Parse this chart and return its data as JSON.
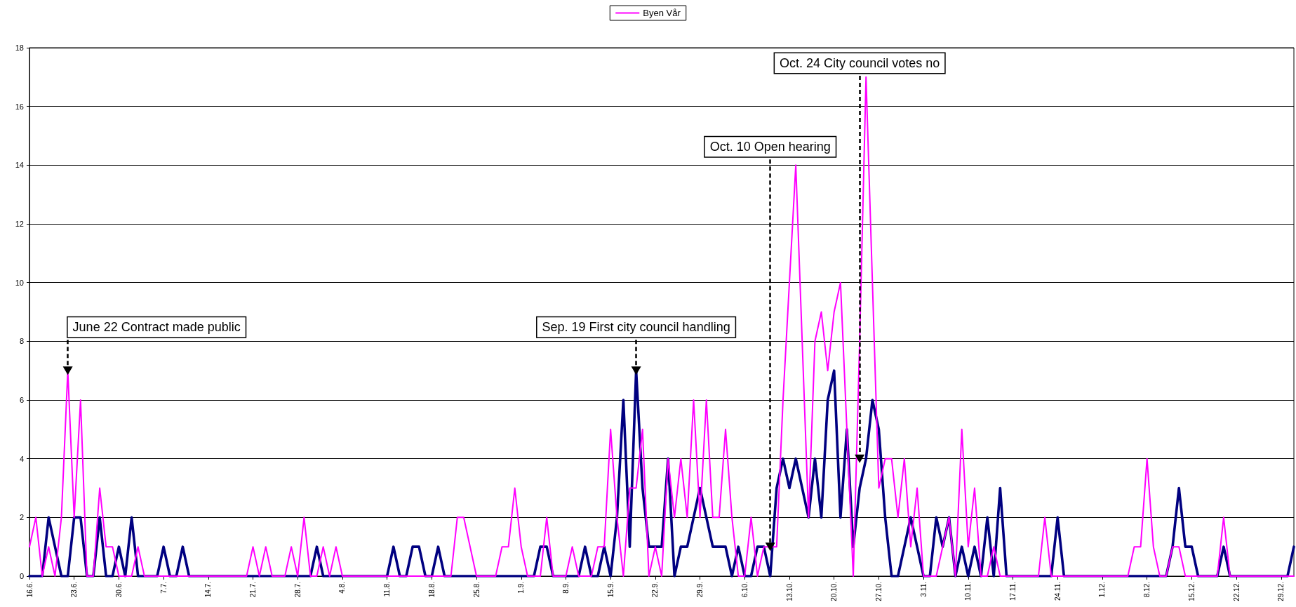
{
  "chart_data": {
    "type": "line",
    "x": [
      "--06-16",
      "--06-17",
      "--06-18",
      "--06-19",
      "--06-20",
      "--06-21",
      "--06-22",
      "--06-23",
      "--06-24",
      "--06-25",
      "--06-26",
      "--06-27",
      "--06-28",
      "--06-29",
      "--06-30",
      "--07-01",
      "--07-02",
      "--07-03",
      "--07-04",
      "--07-05",
      "--07-06",
      "--07-07",
      "--07-08",
      "--07-09",
      "--07-10",
      "--07-11",
      "--07-12",
      "--07-13",
      "--07-14",
      "--07-15",
      "--07-16",
      "--07-17",
      "--07-18",
      "--07-19",
      "--07-20",
      "--07-21",
      "--07-22",
      "--07-23",
      "--07-24",
      "--07-25",
      "--07-26",
      "--07-27",
      "--07-28",
      "--07-29",
      "--07-30",
      "--07-31",
      "--08-01",
      "--08-02",
      "--08-03",
      "--08-04",
      "--08-05",
      "--08-06",
      "--08-07",
      "--08-08",
      "--08-09",
      "--08-10",
      "--08-11",
      "--08-12",
      "--08-13",
      "--08-14",
      "--08-15",
      "--08-16",
      "--08-17",
      "--08-18",
      "--08-19",
      "--08-20",
      "--08-21",
      "--08-22",
      "--08-23",
      "--08-24",
      "--08-25",
      "--08-26",
      "--08-27",
      "--08-28",
      "--08-29",
      "--08-30",
      "--08-31",
      "--09-01",
      "--09-02",
      "--09-03",
      "--09-04",
      "--09-05",
      "--09-06",
      "--09-07",
      "--09-08",
      "--09-09",
      "--09-10",
      "--09-11",
      "--09-12",
      "--09-13",
      "--09-14",
      "--09-15",
      "--09-16",
      "--09-17",
      "--09-18",
      "--09-19",
      "--09-20",
      "--09-21",
      "--09-22",
      "--09-23",
      "--09-24",
      "--09-25",
      "--09-26",
      "--09-27",
      "--09-28",
      "--09-29",
      "--09-30",
      "--10-01",
      "--10-02",
      "--10-03",
      "--10-04",
      "--10-05",
      "--10-06",
      "--10-07",
      "--10-08",
      "--10-09",
      "--10-10",
      "--10-11",
      "--10-12",
      "--10-13",
      "--10-14",
      "--10-15",
      "--10-16",
      "--10-17",
      "--10-18",
      "--10-19",
      "--10-20",
      "--10-21",
      "--10-22",
      "--10-23",
      "--10-24",
      "--10-25",
      "--10-26",
      "--10-27",
      "--10-28",
      "--10-29",
      "--10-30",
      "--10-31",
      "--11-01",
      "--11-02",
      "--11-03",
      "--11-04",
      "--11-05",
      "--11-06",
      "--11-07",
      "--11-08",
      "--11-09",
      "--11-10",
      "--11-11",
      "--11-12",
      "--11-13",
      "--11-14",
      "--11-15",
      "--11-16",
      "--11-17",
      "--11-18",
      "--11-19",
      "--11-20",
      "--11-21",
      "--11-22",
      "--11-23",
      "--11-24",
      "--11-25",
      "--11-26",
      "--11-27",
      "--11-28",
      "--11-29",
      "--11-30",
      "--12-01",
      "--12-02",
      "--12-03",
      "--12-04",
      "--12-05",
      "--12-06",
      "--12-07",
      "--12-08",
      "--12-09",
      "--12-10",
      "--12-11",
      "--12-12",
      "--12-13",
      "--12-14",
      "--12-15",
      "--12-16",
      "--12-17",
      "--12-18",
      "--12-19",
      "--12-20",
      "--12-21",
      "--12-22",
      "--12-23",
      "--12-24",
      "--12-25",
      "--12-26",
      "--12-27",
      "--12-28",
      "--12-29",
      "--12-30",
      "--12-31"
    ],
    "series": [
      {
        "color": "#000080",
        "values": [
          0,
          0,
          0,
          2,
          1,
          0,
          0,
          2,
          2,
          0,
          0,
          2,
          0,
          0,
          1,
          0,
          2,
          0,
          0,
          0,
          0,
          1,
          0,
          0,
          1,
          0,
          0,
          0,
          0,
          0,
          0,
          0,
          0,
          0,
          0,
          0,
          0,
          0,
          0,
          0,
          0,
          0,
          0,
          0,
          0,
          1,
          0,
          0,
          0,
          0,
          0,
          0,
          0,
          0,
          0,
          0,
          0,
          1,
          0,
          0,
          1,
          1,
          0,
          0,
          1,
          0,
          0,
          0,
          0,
          0,
          0,
          0,
          0,
          0,
          0,
          0,
          0,
          0,
          0,
          0,
          1,
          1,
          0,
          0,
          0,
          0,
          0,
          1,
          0,
          0,
          1,
          0,
          2,
          6,
          1,
          7,
          3,
          1,
          1,
          1,
          4,
          0,
          1,
          1,
          2,
          3,
          2,
          1,
          1,
          1,
          0,
          1,
          0,
          0,
          1,
          1,
          0,
          3,
          4,
          3,
          4,
          3,
          2,
          4,
          2,
          6,
          7,
          2,
          5,
          1,
          3,
          4,
          6,
          5,
          2,
          0,
          0,
          1,
          2,
          1,
          0,
          0,
          2,
          1,
          2,
          0,
          1,
          0,
          1,
          0,
          2,
          0,
          3,
          0,
          0,
          0,
          0,
          0,
          0,
          0,
          0,
          2,
          0,
          0,
          0,
          0,
          0,
          0,
          0,
          0,
          0,
          0,
          0,
          0,
          0,
          0,
          0,
          0,
          0,
          1,
          3,
          1,
          1,
          0,
          0,
          0,
          0,
          1,
          0,
          0,
          0,
          0,
          0,
          0,
          0,
          0,
          0,
          0,
          1
        ]
      },
      {
        "name": "Byen Vår",
        "color": "#ff00ff",
        "values": [
          1,
          2,
          0,
          1,
          0,
          2,
          7,
          2,
          6,
          0,
          0,
          3,
          1,
          1,
          0,
          0,
          0,
          1,
          0,
          0,
          0,
          0,
          0,
          0,
          0,
          0,
          0,
          0,
          0,
          0,
          0,
          0,
          0,
          0,
          0,
          1,
          0,
          1,
          0,
          0,
          0,
          1,
          0,
          2,
          0,
          0,
          1,
          0,
          1,
          0,
          0,
          0,
          0,
          0,
          0,
          0,
          0,
          0,
          0,
          0,
          0,
          0,
          0,
          0,
          0,
          0,
          0,
          2,
          2,
          1,
          0,
          0,
          0,
          0,
          1,
          1,
          3,
          1,
          0,
          0,
          0,
          2,
          0,
          0,
          0,
          1,
          0,
          0,
          0,
          1,
          1,
          5,
          2,
          0,
          3,
          3,
          5,
          0,
          1,
          0,
          4,
          2,
          4,
          2,
          6,
          2,
          6,
          2,
          2,
          5,
          2,
          0,
          0,
          2,
          0,
          1,
          1,
          1,
          6,
          10,
          14,
          8,
          2,
          8,
          9,
          7,
          9,
          10,
          5,
          0,
          8,
          17,
          10,
          3,
          4,
          4,
          2,
          4,
          1,
          3,
          0,
          0,
          0,
          1,
          2,
          0,
          5,
          1,
          3,
          0,
          0,
          1,
          0,
          0,
          0,
          0,
          0,
          0,
          0,
          2,
          0,
          0,
          0,
          0,
          0,
          0,
          0,
          0,
          0,
          0,
          0,
          0,
          0,
          1,
          1,
          4,
          1,
          0,
          0,
          1,
          1,
          0,
          0,
          0,
          0,
          0,
          0,
          2,
          0,
          0,
          0,
          0,
          0,
          0,
          0,
          0,
          0,
          0,
          0
        ]
      }
    ],
    "xlim": [
      "--06-16",
      "--12-31"
    ],
    "xticks": [
      {
        "value": "--06-16",
        "label": "16.6."
      },
      {
        "value": "--06-23",
        "label": "23.6."
      },
      {
        "value": "--06-30",
        "label": "30.6."
      },
      {
        "value": "--07-07",
        "label": "7.7."
      },
      {
        "value": "--07-14",
        "label": "14.7."
      },
      {
        "value": "--07-21",
        "label": "21.7."
      },
      {
        "value": "--07-28",
        "label": "28.7."
      },
      {
        "value": "--08-04",
        "label": "4.8."
      },
      {
        "value": "--08-11",
        "label": "11.8."
      },
      {
        "value": "--08-18",
        "label": "18.8."
      },
      {
        "value": "--08-25",
        "label": "25.8."
      },
      {
        "value": "--09-01",
        "label": "1.9."
      },
      {
        "value": "--09-08",
        "label": "8.9."
      },
      {
        "value": "--09-15",
        "label": "15.9."
      },
      {
        "value": "--09-22",
        "label": "22.9."
      },
      {
        "value": "--09-29",
        "label": "29.9."
      },
      {
        "value": "--10-06",
        "label": "6.10."
      },
      {
        "value": "--10-13",
        "label": "13.10."
      },
      {
        "value": "--10-20",
        "label": "20.10."
      },
      {
        "value": "--10-27",
        "label": "27.10."
      },
      {
        "value": "--11-03",
        "label": "3.11."
      },
      {
        "value": "--11-10",
        "label": "10.11."
      },
      {
        "value": "--11-17",
        "label": "17.11."
      },
      {
        "value": "--11-24",
        "label": "24.11."
      },
      {
        "value": "--12-01",
        "label": "1.12."
      },
      {
        "value": "--12-08",
        "label": "8.12."
      },
      {
        "value": "--12-15",
        "label": "15.12."
      },
      {
        "value": "--12-22",
        "label": "22.12."
      },
      {
        "value": "--12-29",
        "label": "29.12."
      }
    ],
    "ylim": [
      0,
      18
    ],
    "yticks": [
      0,
      2,
      4,
      6,
      8,
      10,
      12,
      14,
      16,
      18
    ],
    "grid": "y",
    "legend": "top",
    "marker": "none",
    "line_style": "solid",
    "annotations": [
      {
        "text": "June 22 Contract made public",
        "x": "--06-22",
        "y": 7
      },
      {
        "text": "Sep. 19 First city council handling",
        "x": "--09-19",
        "y": 7
      },
      {
        "text": "Oct. 10 Open hearing",
        "x": "--10-10",
        "y": 1
      },
      {
        "text": "Oct. 24 City council votes no",
        "x": "--10-24",
        "y": 4
      }
    ]
  }
}
